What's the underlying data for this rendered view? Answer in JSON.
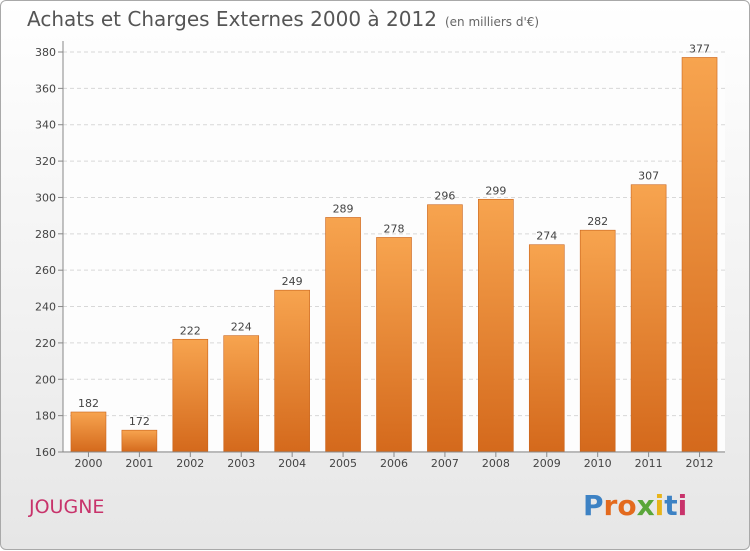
{
  "title": "Achats et Charges Externes 2000 à 2012",
  "subtitle": "(en milliers d'€)",
  "commune": "JOUGNE",
  "logo": {
    "text": "Proxiti",
    "colors": [
      "#3d82c4",
      "#e36a1e",
      "#e36a1e",
      "#5aa63a",
      "#e8b41a",
      "#3d82c4",
      "#c8336b"
    ]
  },
  "chart_data": {
    "type": "bar",
    "categories": [
      "2000",
      "2001",
      "2002",
      "2003",
      "2004",
      "2005",
      "2006",
      "2007",
      "2008",
      "2009",
      "2010",
      "2011",
      "2012"
    ],
    "values": [
      182,
      172,
      222,
      224,
      249,
      289,
      278,
      296,
      299,
      274,
      282,
      307,
      377
    ],
    "ylim": [
      160,
      380
    ],
    "yticks": [
      160,
      180,
      200,
      220,
      240,
      260,
      280,
      300,
      320,
      340,
      360,
      380
    ],
    "grid": true,
    "bar_color_top": "#f7a44f",
    "bar_color_bottom": "#d4691c"
  }
}
